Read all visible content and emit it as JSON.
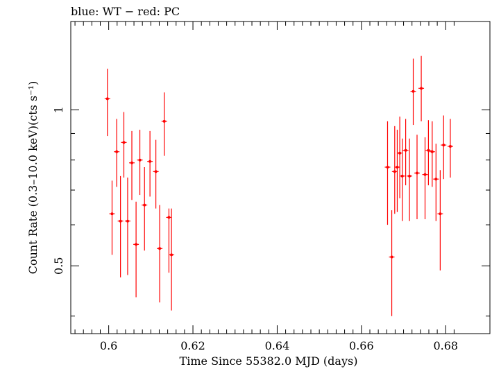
{
  "chart_data": {
    "type": "scatter",
    "title": "blue: WT − red: PC",
    "xlabel": "Time Since 55382.0 MJD (days)",
    "ylabel": "Count Rate (0.3–10.0 keV)(cts s⁻¹)",
    "xlim": [
      0.591,
      0.6905
    ],
    "ylim": [
      0.37,
      1.48
    ],
    "y_scale": "log",
    "x_ticks": [
      {
        "value": 0.6,
        "label": "0.6"
      },
      {
        "value": 0.62,
        "label": "0.62"
      },
      {
        "value": 0.64,
        "label": "0.64"
      },
      {
        "value": 0.66,
        "label": "0.66"
      },
      {
        "value": 0.68,
        "label": "0.68"
      }
    ],
    "y_ticks": [
      {
        "value": 0.5,
        "label": "0.5"
      },
      {
        "value": 1,
        "label": "1"
      }
    ],
    "grid": false,
    "series": [
      {
        "color": "#ff0000",
        "points": [
          {
            "x": 0.5997,
            "y": 1.05,
            "lo": 0.89,
            "hi": 1.2
          },
          {
            "x": 0.6008,
            "y": 0.63,
            "lo": 0.525,
            "hi": 0.73
          },
          {
            "x": 0.6019,
            "y": 0.83,
            "lo": 0.71,
            "hi": 0.96
          },
          {
            "x": 0.6028,
            "y": 0.61,
            "lo": 0.475,
            "hi": 0.745
          },
          {
            "x": 0.6036,
            "y": 0.865,
            "lo": 0.74,
            "hi": 0.99
          },
          {
            "x": 0.6045,
            "y": 0.61,
            "lo": 0.48,
            "hi": 0.74
          },
          {
            "x": 0.6055,
            "y": 0.79,
            "lo": 0.67,
            "hi": 0.91
          },
          {
            "x": 0.6065,
            "y": 0.55,
            "lo": 0.435,
            "hi": 0.665
          },
          {
            "x": 0.6074,
            "y": 0.8,
            "lo": 0.685,
            "hi": 0.915
          },
          {
            "x": 0.6085,
            "y": 0.655,
            "lo": 0.535,
            "hi": 0.775
          },
          {
            "x": 0.6098,
            "y": 0.795,
            "lo": 0.68,
            "hi": 0.91
          },
          {
            "x": 0.6112,
            "y": 0.76,
            "lo": 0.645,
            "hi": 0.875
          },
          {
            "x": 0.6121,
            "y": 0.54,
            "lo": 0.425,
            "hi": 0.655
          },
          {
            "x": 0.6132,
            "y": 0.95,
            "lo": 0.815,
            "hi": 1.08
          },
          {
            "x": 0.6143,
            "y": 0.62,
            "lo": 0.485,
            "hi": 0.645
          },
          {
            "x": 0.6149,
            "y": 0.525,
            "lo": 0.41,
            "hi": 0.645
          },
          {
            "x": 0.6662,
            "y": 0.775,
            "lo": 0.6,
            "hi": 0.95
          },
          {
            "x": 0.6672,
            "y": 0.52,
            "lo": 0.4,
            "hi": 0.64
          },
          {
            "x": 0.6679,
            "y": 0.76,
            "lo": 0.63,
            "hi": 0.93
          },
          {
            "x": 0.6685,
            "y": 0.775,
            "lo": 0.635,
            "hi": 0.915
          },
          {
            "x": 0.6691,
            "y": 0.825,
            "lo": 0.675,
            "hi": 0.97
          },
          {
            "x": 0.6697,
            "y": 0.745,
            "lo": 0.61,
            "hi": 0.88
          },
          {
            "x": 0.6705,
            "y": 0.835,
            "lo": 0.715,
            "hi": 0.96
          },
          {
            "x": 0.6714,
            "y": 0.745,
            "lo": 0.61,
            "hi": 0.88
          },
          {
            "x": 0.6723,
            "y": 1.085,
            "lo": 0.935,
            "hi": 1.255
          },
          {
            "x": 0.6732,
            "y": 0.755,
            "lo": 0.615,
            "hi": 0.895
          },
          {
            "x": 0.6742,
            "y": 1.1,
            "lo": 0.95,
            "hi": 1.27
          },
          {
            "x": 0.6751,
            "y": 0.75,
            "lo": 0.615,
            "hi": 0.885
          },
          {
            "x": 0.6759,
            "y": 0.835,
            "lo": 0.715,
            "hi": 0.955
          },
          {
            "x": 0.6768,
            "y": 0.83,
            "lo": 0.71,
            "hi": 0.95
          },
          {
            "x": 0.6777,
            "y": 0.735,
            "lo": 0.61,
            "hi": 0.86
          },
          {
            "x": 0.6787,
            "y": 0.63,
            "lo": 0.49,
            "hi": 0.765
          },
          {
            "x": 0.6795,
            "y": 0.855,
            "lo": 0.735,
            "hi": 0.975
          },
          {
            "x": 0.6811,
            "y": 0.85,
            "lo": 0.74,
            "hi": 0.96
          }
        ]
      }
    ]
  }
}
